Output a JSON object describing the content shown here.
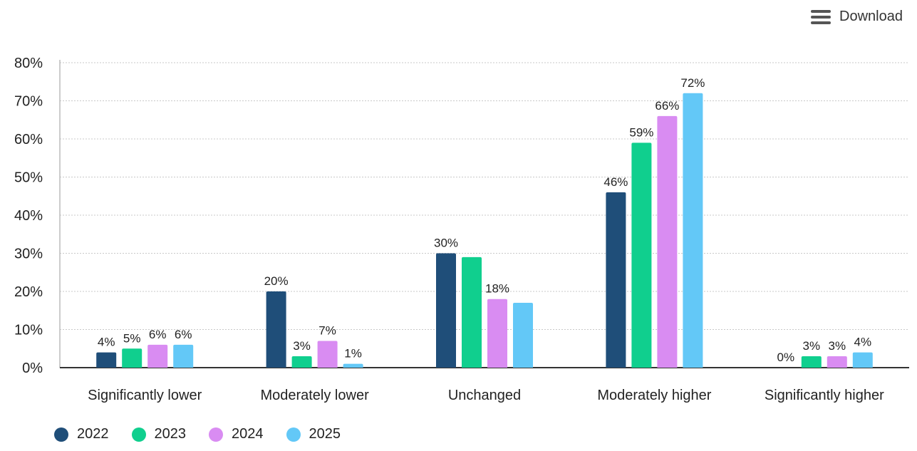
{
  "toolbar": {
    "download_label": "Download",
    "download_icon": "hamburger-icon"
  },
  "colors": {
    "2022": "#1f4e79",
    "2023": "#10cf8e",
    "2024": "#d98cf2",
    "2025": "#63c8f7",
    "grid": "#c8c8c8",
    "axis": "#333333",
    "text": "#222222"
  },
  "chart_data": {
    "type": "bar",
    "title": "",
    "xlabel": "",
    "ylabel": "",
    "ylim": [
      0,
      80
    ],
    "y_ticks": [
      "0%",
      "10%",
      "20%",
      "30%",
      "40%",
      "50%",
      "60%",
      "70%",
      "80%"
    ],
    "categories": [
      "Significantly lower",
      "Moderately lower",
      "Unchanged",
      "Moderately higher",
      "Significantly higher"
    ],
    "series": [
      {
        "name": "2022",
        "values": [
          4,
          20,
          30,
          46,
          0
        ],
        "labels": [
          "4%",
          "20%",
          "30%",
          "46%",
          "0%"
        ]
      },
      {
        "name": "2023",
        "values": [
          5,
          3,
          29,
          59,
          3
        ],
        "labels": [
          "5%",
          "3%",
          "",
          "59%",
          "3%"
        ]
      },
      {
        "name": "2024",
        "values": [
          6,
          7,
          18,
          66,
          3
        ],
        "labels": [
          "6%",
          "7%",
          "18%",
          "66%",
          "3%"
        ]
      },
      {
        "name": "2025",
        "values": [
          6,
          1,
          17,
          72,
          4
        ],
        "labels": [
          "6%",
          "1%",
          "",
          "72%",
          "4%"
        ]
      }
    ],
    "grid": true,
    "legend_position": "bottom-left"
  }
}
